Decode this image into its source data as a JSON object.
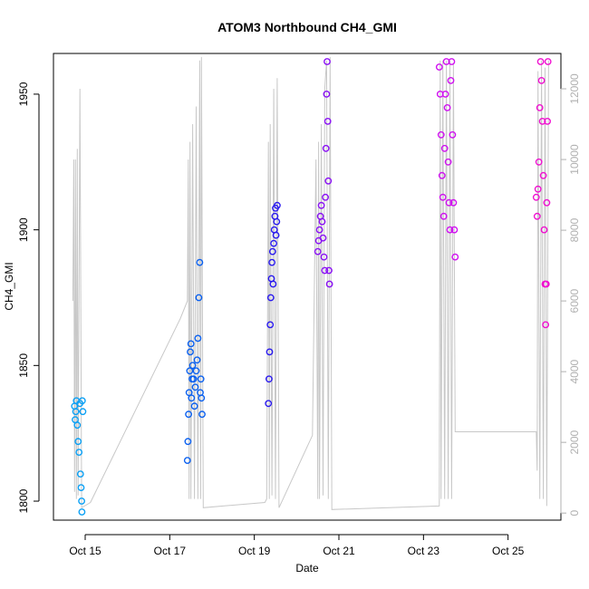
{
  "chart_data": {
    "type": "scatter",
    "title": "ATOM3 Northbound CH4_GMI",
    "xlabel": "Date",
    "ylabel": "CH4_GMI",
    "xlim": [
      "2017-10-14T06:00",
      "2017-10-26T06:00"
    ],
    "ylim": [
      1793,
      1965
    ],
    "y2lim": [
      -200,
      13000
    ],
    "x_ticks": [
      {
        "date": "2017-10-15T00:00",
        "label": "Oct 15"
      },
      {
        "date": "2017-10-17T00:00",
        "label": "Oct 17"
      },
      {
        "date": "2017-10-19T00:00",
        "label": "Oct 19"
      },
      {
        "date": "2017-10-21T00:00",
        "label": "Oct 21"
      },
      {
        "date": "2017-10-23T00:00",
        "label": "Oct 23"
      },
      {
        "date": "2017-10-25T00:00",
        "label": "Oct 25"
      }
    ],
    "y_ticks": [
      1800,
      1850,
      1900,
      1950
    ],
    "y2_ticks": [
      0,
      2000,
      4000,
      6000,
      8000,
      10000,
      12000
    ],
    "grid": false,
    "altitude_color": "#c8c8c8",
    "series": [
      {
        "color": "#0aa0f5",
        "points": [
          [
            "2017-10-14T18:00",
            1835
          ],
          [
            "2017-10-14T18:20",
            1830
          ],
          [
            "2017-10-14T18:40",
            1833
          ],
          [
            "2017-10-14T19:00",
            1837
          ],
          [
            "2017-10-14T19:30",
            1828
          ],
          [
            "2017-10-14T20:00",
            1822
          ],
          [
            "2017-10-14T20:30",
            1818
          ],
          [
            "2017-10-14T21:00",
            1836
          ],
          [
            "2017-10-14T21:20",
            1810
          ],
          [
            "2017-10-14T21:40",
            1805
          ],
          [
            "2017-10-14T22:00",
            1800
          ],
          [
            "2017-10-14T22:10",
            1796
          ],
          [
            "2017-10-14T22:20",
            1837
          ],
          [
            "2017-10-14T22:40",
            1833
          ]
        ]
      },
      {
        "color": "#0a60f0",
        "points": [
          [
            "2017-10-17T10:00",
            1815
          ],
          [
            "2017-10-17T10:20",
            1822
          ],
          [
            "2017-10-17T10:40",
            1832
          ],
          [
            "2017-10-17T11:00",
            1840
          ],
          [
            "2017-10-17T11:20",
            1848
          ],
          [
            "2017-10-17T11:40",
            1855
          ],
          [
            "2017-10-17T12:00",
            1858
          ],
          [
            "2017-10-17T12:20",
            1838
          ],
          [
            "2017-10-17T12:40",
            1845
          ],
          [
            "2017-10-17T13:00",
            1850
          ],
          [
            "2017-10-17T13:30",
            1845
          ],
          [
            "2017-10-17T14:00",
            1835
          ],
          [
            "2017-10-17T14:30",
            1842
          ],
          [
            "2017-10-17T15:00",
            1848
          ],
          [
            "2017-10-17T15:30",
            1852
          ],
          [
            "2017-10-17T16:00",
            1860
          ],
          [
            "2017-10-17T16:30",
            1875
          ],
          [
            "2017-10-17T17:00",
            1888
          ],
          [
            "2017-10-17T17:20",
            1840
          ],
          [
            "2017-10-17T17:40",
            1845
          ],
          [
            "2017-10-17T18:00",
            1838
          ],
          [
            "2017-10-17T18:20",
            1832
          ]
        ]
      },
      {
        "color": "#2a1af0",
        "points": [
          [
            "2017-10-19T08:00",
            1836
          ],
          [
            "2017-10-19T08:20",
            1845
          ],
          [
            "2017-10-19T08:40",
            1855
          ],
          [
            "2017-10-19T09:00",
            1865
          ],
          [
            "2017-10-19T09:20",
            1875
          ],
          [
            "2017-10-19T09:40",
            1882
          ],
          [
            "2017-10-19T10:00",
            1888
          ],
          [
            "2017-10-19T10:20",
            1892
          ],
          [
            "2017-10-19T10:40",
            1880
          ],
          [
            "2017-10-19T11:00",
            1895
          ],
          [
            "2017-10-19T11:20",
            1900
          ],
          [
            "2017-10-19T11:40",
            1905
          ],
          [
            "2017-10-19T12:00",
            1908
          ],
          [
            "2017-10-19T12:20",
            1898
          ],
          [
            "2017-10-19T12:40",
            1903
          ],
          [
            "2017-10-19T13:00",
            1909
          ]
        ]
      },
      {
        "color": "#8a10f5",
        "points": [
          [
            "2017-10-20T12:00",
            1892
          ],
          [
            "2017-10-20T12:30",
            1896
          ],
          [
            "2017-10-20T13:00",
            1900
          ],
          [
            "2017-10-20T13:30",
            1905
          ],
          [
            "2017-10-20T14:00",
            1909
          ],
          [
            "2017-10-20T14:30",
            1903
          ],
          [
            "2017-10-20T15:00",
            1897
          ],
          [
            "2017-10-20T15:30",
            1890
          ],
          [
            "2017-10-20T16:00",
            1885
          ],
          [
            "2017-10-20T16:20",
            1912
          ],
          [
            "2017-10-20T16:40",
            1930
          ],
          [
            "2017-10-20T17:00",
            1950
          ],
          [
            "2017-10-20T17:20",
            1962
          ],
          [
            "2017-10-20T17:40",
            1940
          ],
          [
            "2017-10-20T18:00",
            1918
          ],
          [
            "2017-10-20T18:20",
            1885
          ],
          [
            "2017-10-20T18:40",
            1880
          ]
        ]
      },
      {
        "color": "#d010f0",
        "points": [
          [
            "2017-10-23T09:00",
            1960
          ],
          [
            "2017-10-23T09:30",
            1950
          ],
          [
            "2017-10-23T10:00",
            1935
          ],
          [
            "2017-10-23T10:30",
            1920
          ],
          [
            "2017-10-23T11:00",
            1912
          ],
          [
            "2017-10-23T11:30",
            1905
          ],
          [
            "2017-10-23T12:00",
            1930
          ],
          [
            "2017-10-23T12:30",
            1950
          ],
          [
            "2017-10-23T13:00",
            1962
          ],
          [
            "2017-10-23T13:30",
            1945
          ],
          [
            "2017-10-23T14:00",
            1925
          ],
          [
            "2017-10-23T14:30",
            1910
          ],
          [
            "2017-10-23T15:00",
            1900
          ],
          [
            "2017-10-23T15:30",
            1955
          ],
          [
            "2017-10-23T16:00",
            1962
          ],
          [
            "2017-10-23T16:30",
            1935
          ],
          [
            "2017-10-23T17:00",
            1910
          ],
          [
            "2017-10-23T17:30",
            1900
          ],
          [
            "2017-10-23T18:00",
            1890
          ]
        ]
      },
      {
        "color": "#f010d0",
        "points": [
          [
            "2017-10-25T16:00",
            1912
          ],
          [
            "2017-10-25T16:30",
            1905
          ],
          [
            "2017-10-25T17:00",
            1915
          ],
          [
            "2017-10-25T17:30",
            1925
          ],
          [
            "2017-10-25T18:00",
            1945
          ],
          [
            "2017-10-25T18:30",
            1962
          ],
          [
            "2017-10-25T19:00",
            1955
          ],
          [
            "2017-10-25T19:30",
            1940
          ],
          [
            "2017-10-25T20:00",
            1920
          ],
          [
            "2017-10-25T20:30",
            1900
          ],
          [
            "2017-10-25T21:00",
            1880
          ],
          [
            "2017-10-25T21:20",
            1865
          ],
          [
            "2017-10-25T21:40",
            1880
          ],
          [
            "2017-10-25T22:00",
            1910
          ],
          [
            "2017-10-25T22:20",
            1940
          ],
          [
            "2017-10-25T22:40",
            1962
          ]
        ]
      }
    ],
    "altitude_series": [
      [
        "2017-10-14T17:00",
        6000
      ],
      [
        "2017-10-14T17:30",
        10000
      ],
      [
        "2017-10-14T18:00",
        600
      ],
      [
        "2017-10-14T18:30",
        10000
      ],
      [
        "2017-10-14T19:00",
        400
      ],
      [
        "2017-10-14T19:30",
        10300
      ],
      [
        "2017-10-14T20:00",
        500
      ],
      [
        "2017-10-14T21:00",
        12000
      ],
      [
        "2017-10-14T22:00",
        150
      ],
      [
        "2017-10-15T03:00",
        300
      ],
      [
        "2017-10-17T06:00",
        5500
      ],
      [
        "2017-10-17T10:00",
        6000
      ],
      [
        "2017-10-17T10:30",
        10000
      ],
      [
        "2017-10-17T11:00",
        400
      ],
      [
        "2017-10-17T11:30",
        10500
      ],
      [
        "2017-10-17T12:00",
        400
      ],
      [
        "2017-10-17T13:00",
        11000
      ],
      [
        "2017-10-17T14:00",
        400
      ],
      [
        "2017-10-17T15:00",
        11500
      ],
      [
        "2017-10-17T16:00",
        400
      ],
      [
        "2017-10-17T17:00",
        12800
      ],
      [
        "2017-10-17T17:30",
        400
      ],
      [
        "2017-10-17T18:00",
        12900
      ],
      [
        "2017-10-17T19:00",
        150
      ],
      [
        "2017-10-19T06:00",
        300
      ],
      [
        "2017-10-19T07:00",
        400
      ],
      [
        "2017-10-19T08:00",
        10500
      ],
      [
        "2017-10-19T08:30",
        400
      ],
      [
        "2017-10-19T09:00",
        11000
      ],
      [
        "2017-10-19T10:00",
        500
      ],
      [
        "2017-10-19T11:00",
        12000
      ],
      [
        "2017-10-19T12:00",
        400
      ],
      [
        "2017-10-19T13:00",
        12300
      ],
      [
        "2017-10-19T14:00",
        150
      ],
      [
        "2017-10-20T09:00",
        2200
      ],
      [
        "2017-10-20T11:00",
        10000
      ],
      [
        "2017-10-20T12:00",
        400
      ],
      [
        "2017-10-20T12:30",
        10500
      ],
      [
        "2017-10-20T13:00",
        400
      ],
      [
        "2017-10-20T14:00",
        11000
      ],
      [
        "2017-10-20T15:00",
        500
      ],
      [
        "2017-10-20T16:00",
        12000
      ],
      [
        "2017-10-20T17:00",
        12800
      ],
      [
        "2017-10-20T18:00",
        400
      ],
      [
        "2017-10-20T19:00",
        12900
      ],
      [
        "2017-10-20T20:00",
        100
      ],
      [
        "2017-10-23T09:00",
        200
      ],
      [
        "2017-10-23T09:30",
        12800
      ],
      [
        "2017-10-23T10:00",
        400
      ],
      [
        "2017-10-23T11:00",
        12800
      ],
      [
        "2017-10-23T12:00",
        400
      ],
      [
        "2017-10-23T13:00",
        12800
      ],
      [
        "2017-10-23T14:00",
        400
      ],
      [
        "2017-10-23T15:00",
        12800
      ],
      [
        "2017-10-23T16:00",
        400
      ],
      [
        "2017-10-23T17:00",
        12700
      ],
      [
        "2017-10-23T18:00",
        2300
      ],
      [
        "2017-10-25T16:00",
        2300
      ],
      [
        "2017-10-25T16:30",
        1200
      ],
      [
        "2017-10-25T17:00",
        12500
      ],
      [
        "2017-10-25T18:00",
        400
      ],
      [
        "2017-10-25T19:00",
        12800
      ],
      [
        "2017-10-25T20:00",
        400
      ],
      [
        "2017-10-25T21:00",
        12600
      ],
      [
        "2017-10-25T22:00",
        200
      ],
      [
        "2017-10-25T23:00",
        12800
      ]
    ]
  }
}
